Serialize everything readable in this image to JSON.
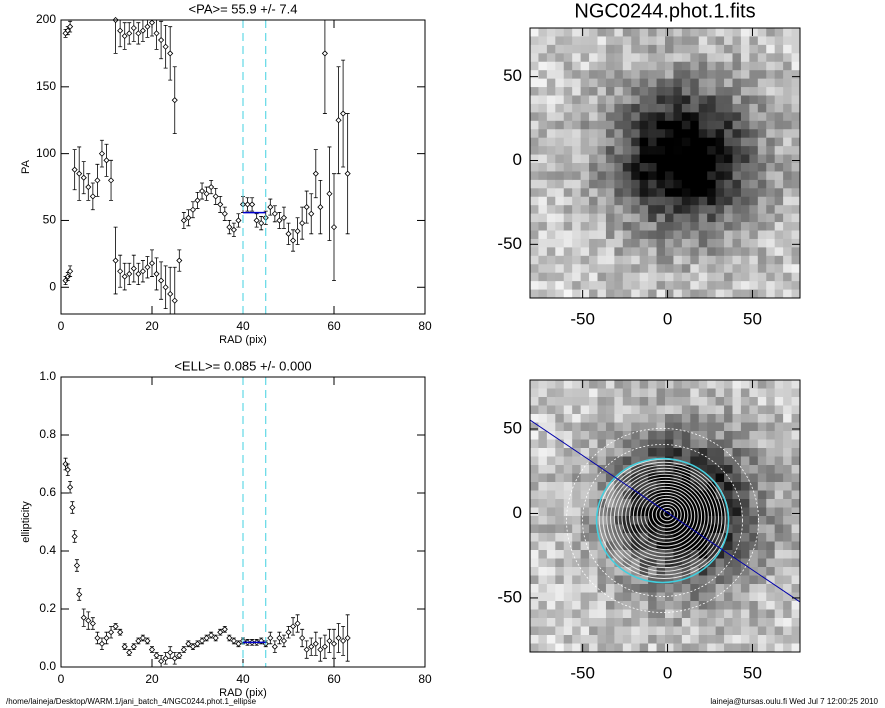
{
  "chart_data": [
    {
      "type": "scatter",
      "title": "<PA>=  55.9 +/-   7.4",
      "xlabel": "RAD (pix)",
      "ylabel": "PA",
      "xlim": [
        0,
        80
      ],
      "ylim": [
        -20,
        200
      ],
      "xticks": [
        0,
        20,
        40,
        60,
        80
      ],
      "yticks": [
        0,
        50,
        100,
        150,
        200
      ],
      "markers": [
        40,
        45
      ],
      "mean": 55.9,
      "color": "#000000",
      "mean_color": "#0000cc",
      "marker_color": "#40d0e0",
      "series": [
        {
          "x": [
            1,
            1.5,
            2,
            3,
            4,
            5,
            6,
            7,
            8,
            9,
            10,
            11,
            12,
            13,
            14,
            15,
            16,
            17,
            18,
            19,
            20,
            21,
            22,
            23,
            24,
            25,
            26,
            27,
            28,
            29,
            30,
            31,
            32,
            33,
            34,
            35,
            36,
            37,
            38,
            39,
            40,
            41,
            42,
            43,
            44,
            45,
            46,
            47,
            48,
            49,
            50,
            51,
            52,
            53,
            54,
            55,
            56,
            57,
            58,
            59,
            60,
            61,
            62,
            63
          ],
          "values": [
            5,
            8,
            12,
            88,
            85,
            82,
            75,
            68,
            80,
            100,
            95,
            80,
            20,
            12,
            8,
            10,
            14,
            10,
            12,
            15,
            18,
            10,
            5,
            0,
            -5,
            -10,
            20,
            50,
            52,
            58,
            65,
            72,
            70,
            75,
            68,
            62,
            55,
            45,
            43,
            50,
            62,
            62,
            62,
            50,
            48,
            52,
            60,
            55,
            50,
            52,
            40,
            35,
            42,
            48,
            60,
            55,
            85,
            60,
            175,
            70,
            45,
            125,
            130,
            85
          ],
          "errors": [
            3,
            3,
            4,
            15,
            20,
            12,
            10,
            10,
            12,
            10,
            12,
            15,
            25,
            12,
            10,
            8,
            10,
            8,
            8,
            8,
            10,
            12,
            14,
            16,
            20,
            25,
            8,
            6,
            6,
            6,
            6,
            6,
            5,
            5,
            6,
            6,
            5,
            5,
            5,
            5,
            6,
            5,
            5,
            5,
            5,
            5,
            6,
            6,
            6,
            8,
            8,
            8,
            10,
            12,
            12,
            15,
            18,
            20,
            45,
            35,
            40,
            40,
            40,
            45
          ]
        },
        {
          "x": [
            1,
            1.5,
            2,
            12,
            13,
            14,
            15,
            16,
            17,
            18,
            19,
            20,
            21,
            22,
            23,
            24,
            25
          ],
          "values": [
            190,
            192,
            195,
            200,
            192,
            188,
            190,
            194,
            190,
            192,
            195,
            198,
            190,
            185,
            180,
            175,
            140
          ],
          "errors": [
            3,
            3,
            4,
            25,
            12,
            10,
            8,
            10,
            8,
            8,
            8,
            10,
            12,
            14,
            16,
            20,
            25
          ]
        }
      ]
    },
    {
      "type": "scatter",
      "title": "<ELL>= 0.085 +/-  0.000",
      "xlabel": "RAD (pix)",
      "ylabel": "ellipticity",
      "xlim": [
        0,
        80
      ],
      "ylim": [
        0,
        1
      ],
      "xticks": [
        0,
        20,
        40,
        60,
        80
      ],
      "yticks": [
        {
          "value": 0,
          "label": "0.0"
        },
        0.2,
        0.4,
        0.6,
        0.8,
        {
          "value": 1,
          "label": "1.0"
        }
      ],
      "markers": [
        40,
        45
      ],
      "mean": 0.085,
      "color": "#000000",
      "mean_color": "#0000cc",
      "marker_color": "#40d0e0",
      "series": [
        {
          "x": [
            1,
            1.5,
            2,
            2.5,
            3,
            3.5,
            4,
            5,
            6,
            7,
            8,
            9,
            10,
            11,
            12,
            13,
            14,
            15,
            16,
            17,
            18,
            19,
            20,
            21,
            22,
            23,
            24,
            25,
            26,
            27,
            28,
            29,
            30,
            31,
            32,
            33,
            34,
            35,
            36,
            37,
            38,
            39,
            40,
            41,
            42,
            43,
            44,
            45,
            46,
            47,
            48,
            49,
            50,
            51,
            52,
            53,
            54,
            55,
            56,
            57,
            58,
            59,
            60,
            61,
            62,
            63
          ],
          "values": [
            0.7,
            0.68,
            0.62,
            0.55,
            0.45,
            0.35,
            0.25,
            0.17,
            0.16,
            0.15,
            0.1,
            0.08,
            0.1,
            0.12,
            0.14,
            0.12,
            0.07,
            0.05,
            0.07,
            0.09,
            0.1,
            0.09,
            0.06,
            0.04,
            0.02,
            0.03,
            0.05,
            0.03,
            0.04,
            0.06,
            0.08,
            0.07,
            0.08,
            0.09,
            0.1,
            0.11,
            0.1,
            0.12,
            0.13,
            0.1,
            0.09,
            0.08,
            0.09,
            0.085,
            0.085,
            0.085,
            0.09,
            0.08,
            0.1,
            0.07,
            0.1,
            0.09,
            0.12,
            0.14,
            0.15,
            0.1,
            0.06,
            0.07,
            0.08,
            0.06,
            0.07,
            0.09,
            0.08,
            0.1,
            0.09,
            0.1
          ],
          "errors": [
            0.02,
            0.02,
            0.02,
            0.02,
            0.02,
            0.02,
            0.02,
            0.03,
            0.03,
            0.02,
            0.02,
            0.02,
            0.02,
            0.02,
            0.01,
            0.01,
            0.01,
            0.01,
            0.01,
            0.01,
            0.01,
            0.01,
            0.01,
            0.01,
            0.02,
            0.02,
            0.02,
            0.02,
            0.01,
            0.01,
            0.01,
            0.01,
            0.01,
            0.01,
            0.01,
            0.01,
            0.01,
            0.01,
            0.01,
            0.01,
            0.01,
            0.01,
            0.01,
            0.01,
            0.01,
            0.01,
            0.01,
            0.01,
            0.02,
            0.02,
            0.02,
            0.02,
            0.02,
            0.03,
            0.03,
            0.03,
            0.03,
            0.03,
            0.04,
            0.04,
            0.04,
            0.04,
            0.05,
            0.05,
            0.05,
            0.08
          ]
        }
      ]
    },
    {
      "type": "image",
      "title": "NGC0244.phot.1.fits",
      "xlim": [
        -81,
        78
      ],
      "ylim": [
        -82,
        79
      ],
      "xticks": [
        -50,
        0,
        50
      ],
      "yticks": [
        -50,
        0,
        50
      ]
    },
    {
      "type": "image",
      "contours": true,
      "xlim": [
        -81,
        78
      ],
      "ylim": [
        -82,
        79
      ],
      "xticks": [
        -50,
        0,
        50
      ],
      "yticks": [
        -50,
        0,
        50
      ]
    }
  ],
  "footer": {
    "left": "/home/laineja/Desktop/WARM.1/jani_batch_4/NGC0244.phot.1_ellipse",
    "right": "laineja@tursas.oulu.fi  Wed Jul  7 12:00:25 2010"
  }
}
